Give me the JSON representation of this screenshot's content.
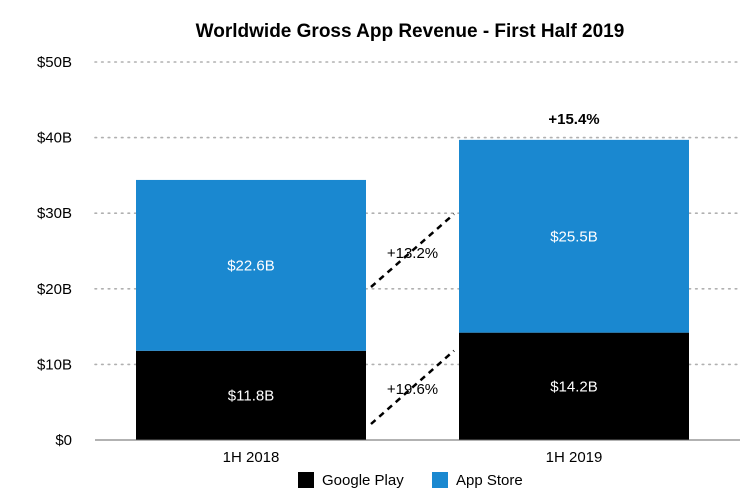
{
  "chart_data": {
    "type": "bar",
    "stacked": true,
    "title": "Worldwide Gross App Revenue - First Half 2019",
    "categories": [
      "1H 2018",
      "1H 2019"
    ],
    "series": [
      {
        "name": "Google Play",
        "values": [
          11.8,
          14.2
        ],
        "labels": [
          "$11.8B",
          "$14.2B"
        ],
        "color": "#000000"
      },
      {
        "name": "App Store",
        "values": [
          22.6,
          25.5
        ],
        "labels": [
          "$22.6B",
          "$25.5B"
        ],
        "color": "#1a88d0"
      }
    ],
    "ylim": [
      0,
      50
    ],
    "yticks": [
      0,
      10,
      20,
      30,
      40,
      50
    ],
    "ytick_labels": [
      "$0",
      "$10B",
      "$20B",
      "$30B",
      "$40B",
      "$50B"
    ],
    "grid": true,
    "legend_position": "bottom",
    "annotations": {
      "google_play_growth": "+19.6%",
      "app_store_growth": "+13.2%",
      "total_growth": "+15.4%"
    }
  }
}
